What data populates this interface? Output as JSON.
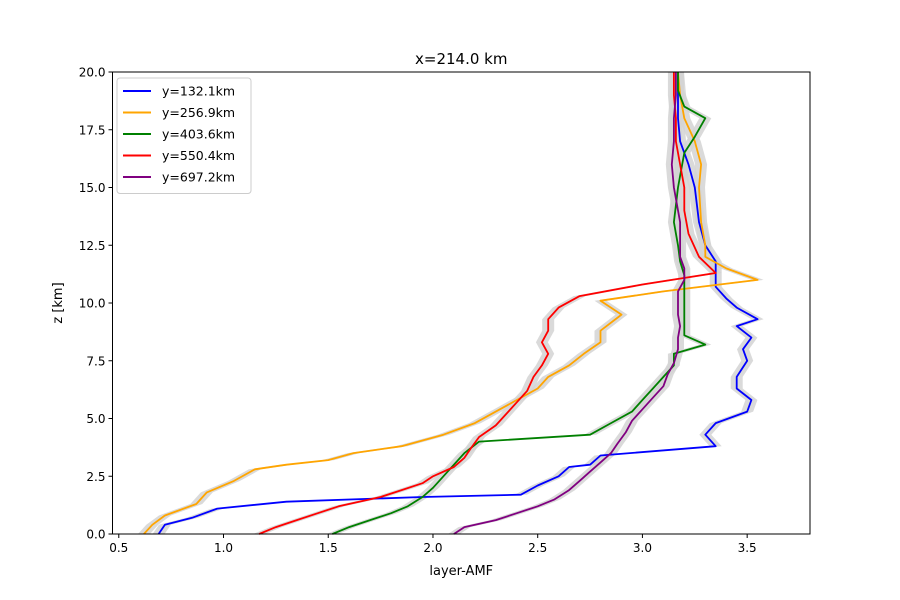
{
  "chart_data": {
    "type": "line",
    "title": "x=214.0 km",
    "xlabel": "layer-AMF",
    "ylabel": "z [km]",
    "xlim": [
      0.47,
      3.8
    ],
    "ylim": [
      0,
      20
    ],
    "xticks": [
      "0.5",
      "1.0",
      "1.5",
      "2.0",
      "2.5",
      "3.0",
      "3.5"
    ],
    "yticks": [
      "0.0",
      "2.5",
      "5.0",
      "7.5",
      "10.0",
      "12.5",
      "15.0",
      "17.5",
      "20.0"
    ],
    "grid": false,
    "legend_position": "top-left",
    "band_color": "#d3d3d3",
    "series": [
      {
        "name": "y=132.1km",
        "color": "#0000ff",
        "points": [
          [
            0.69,
            0
          ],
          [
            0.72,
            0.4
          ],
          [
            0.85,
            0.7
          ],
          [
            0.97,
            1.1
          ],
          [
            1.3,
            1.4
          ],
          [
            1.95,
            1.6
          ],
          [
            2.42,
            1.7
          ],
          [
            2.5,
            2.1
          ],
          [
            2.6,
            2.5
          ],
          [
            2.65,
            2.9
          ],
          [
            2.75,
            3.0
          ],
          [
            2.8,
            3.4
          ],
          [
            3.35,
            3.8
          ],
          [
            3.3,
            4.3
          ],
          [
            3.35,
            4.8
          ],
          [
            3.5,
            5.3
          ],
          [
            3.52,
            5.8
          ],
          [
            3.45,
            6.3
          ],
          [
            3.45,
            6.8
          ],
          [
            3.5,
            7.5
          ],
          [
            3.48,
            8.0
          ],
          [
            3.52,
            8.5
          ],
          [
            3.45,
            9.0
          ],
          [
            3.55,
            9.3
          ],
          [
            3.45,
            9.8
          ],
          [
            3.4,
            10.2
          ],
          [
            3.35,
            10.7
          ],
          [
            3.35,
            11.3
          ],
          [
            3.35,
            11.8
          ],
          [
            3.3,
            12.5
          ],
          [
            3.27,
            13.5
          ],
          [
            3.25,
            15.0
          ],
          [
            3.22,
            16.0
          ],
          [
            3.18,
            17.0
          ],
          [
            3.17,
            18.0
          ],
          [
            3.17,
            19.0
          ],
          [
            3.17,
            20.0
          ]
        ]
      },
      {
        "name": "y=256.9km",
        "color": "#ffa500",
        "points": [
          [
            0.62,
            0
          ],
          [
            0.66,
            0.4
          ],
          [
            0.72,
            0.8
          ],
          [
            0.87,
            1.3
          ],
          [
            0.92,
            1.8
          ],
          [
            1.05,
            2.3
          ],
          [
            1.15,
            2.8
          ],
          [
            1.3,
            3.0
          ],
          [
            1.5,
            3.2
          ],
          [
            1.62,
            3.5
          ],
          [
            1.85,
            3.8
          ],
          [
            2.05,
            4.3
          ],
          [
            2.2,
            4.8
          ],
          [
            2.3,
            5.3
          ],
          [
            2.4,
            5.8
          ],
          [
            2.5,
            6.3
          ],
          [
            2.55,
            6.8
          ],
          [
            2.65,
            7.3
          ],
          [
            2.72,
            7.8
          ],
          [
            2.8,
            8.3
          ],
          [
            2.8,
            8.8
          ],
          [
            2.9,
            9.5
          ],
          [
            2.8,
            10.1
          ],
          [
            3.1,
            10.5
          ],
          [
            3.55,
            11.0
          ],
          [
            3.4,
            11.5
          ],
          [
            3.3,
            12.0
          ],
          [
            3.3,
            12.5
          ],
          [
            3.28,
            13.5
          ],
          [
            3.27,
            15.0
          ],
          [
            3.28,
            16.0
          ],
          [
            3.25,
            17.0
          ],
          [
            3.2,
            18.0
          ],
          [
            3.18,
            19.0
          ],
          [
            3.17,
            20.0
          ]
        ]
      },
      {
        "name": "y=403.6km",
        "color": "#008000",
        "points": [
          [
            1.52,
            0
          ],
          [
            1.6,
            0.3
          ],
          [
            1.7,
            0.6
          ],
          [
            1.8,
            0.9
          ],
          [
            1.88,
            1.2
          ],
          [
            1.95,
            1.6
          ],
          [
            2.0,
            2.0
          ],
          [
            2.05,
            2.5
          ],
          [
            2.1,
            3.0
          ],
          [
            2.15,
            3.5
          ],
          [
            2.22,
            4.0
          ],
          [
            2.75,
            4.3
          ],
          [
            2.85,
            4.8
          ],
          [
            2.95,
            5.3
          ],
          [
            3.0,
            5.8
          ],
          [
            3.05,
            6.3
          ],
          [
            3.1,
            6.8
          ],
          [
            3.15,
            7.3
          ],
          [
            3.15,
            7.8
          ],
          [
            3.3,
            8.2
          ],
          [
            3.2,
            8.6
          ],
          [
            3.2,
            9.2
          ],
          [
            3.2,
            9.7
          ],
          [
            3.2,
            10.2
          ],
          [
            3.2,
            10.7
          ],
          [
            3.2,
            11.2
          ],
          [
            3.18,
            11.8
          ],
          [
            3.17,
            12.5
          ],
          [
            3.15,
            13.5
          ],
          [
            3.17,
            15.0
          ],
          [
            3.2,
            16.5
          ],
          [
            3.25,
            17.2
          ],
          [
            3.3,
            18.0
          ],
          [
            3.2,
            18.5
          ],
          [
            3.17,
            19.2
          ],
          [
            3.17,
            20.0
          ]
        ]
      },
      {
        "name": "y=550.4km",
        "color": "#ff0000",
        "points": [
          [
            1.17,
            0
          ],
          [
            1.25,
            0.3
          ],
          [
            1.35,
            0.6
          ],
          [
            1.45,
            0.9
          ],
          [
            1.55,
            1.2
          ],
          [
            1.75,
            1.6
          ],
          [
            1.85,
            1.9
          ],
          [
            1.95,
            2.2
          ],
          [
            2.0,
            2.5
          ],
          [
            2.1,
            2.9
          ],
          [
            2.15,
            3.3
          ],
          [
            2.18,
            3.7
          ],
          [
            2.22,
            4.2
          ],
          [
            2.3,
            4.7
          ],
          [
            2.35,
            5.2
          ],
          [
            2.4,
            5.7
          ],
          [
            2.45,
            6.2
          ],
          [
            2.48,
            6.8
          ],
          [
            2.52,
            7.3
          ],
          [
            2.55,
            7.8
          ],
          [
            2.52,
            8.3
          ],
          [
            2.55,
            8.8
          ],
          [
            2.55,
            9.3
          ],
          [
            2.6,
            9.8
          ],
          [
            2.7,
            10.3
          ],
          [
            3.0,
            10.8
          ],
          [
            3.35,
            11.3
          ],
          [
            3.27,
            12.0
          ],
          [
            3.22,
            13.0
          ],
          [
            3.2,
            14.0
          ],
          [
            3.2,
            15.0
          ],
          [
            3.18,
            16.0
          ],
          [
            3.16,
            17.0
          ],
          [
            3.16,
            18.0
          ],
          [
            3.15,
            19.0
          ],
          [
            3.15,
            20.0
          ]
        ]
      },
      {
        "name": "y=697.2km",
        "color": "#800080",
        "points": [
          [
            2.1,
            0
          ],
          [
            2.15,
            0.3
          ],
          [
            2.3,
            0.6
          ],
          [
            2.4,
            0.9
          ],
          [
            2.5,
            1.2
          ],
          [
            2.58,
            1.5
          ],
          [
            2.65,
            1.9
          ],
          [
            2.7,
            2.3
          ],
          [
            2.75,
            2.7
          ],
          [
            2.8,
            3.1
          ],
          [
            2.85,
            3.5
          ],
          [
            2.88,
            3.9
          ],
          [
            2.92,
            4.4
          ],
          [
            2.95,
            4.9
          ],
          [
            3.0,
            5.4
          ],
          [
            3.05,
            5.9
          ],
          [
            3.1,
            6.4
          ],
          [
            3.12,
            6.9
          ],
          [
            3.15,
            7.4
          ],
          [
            3.17,
            8.0
          ],
          [
            3.17,
            8.5
          ],
          [
            3.18,
            9.0
          ],
          [
            3.17,
            9.5
          ],
          [
            3.17,
            10.0
          ],
          [
            3.17,
            10.5
          ],
          [
            3.2,
            11.0
          ],
          [
            3.2,
            11.5
          ],
          [
            3.18,
            12.0
          ],
          [
            3.18,
            13.5
          ],
          [
            3.15,
            15.0
          ],
          [
            3.14,
            16.0
          ],
          [
            3.15,
            17.0
          ],
          [
            3.15,
            18.0
          ],
          [
            3.16,
            19.0
          ],
          [
            3.16,
            20.0
          ]
        ]
      }
    ]
  }
}
